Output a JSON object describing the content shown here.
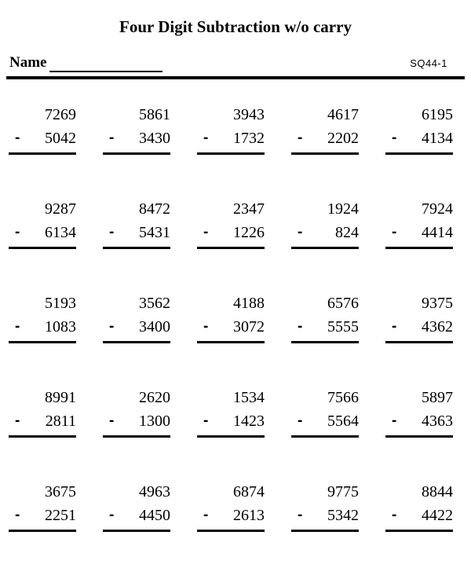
{
  "header": {
    "title": "Four Digit Subtraction w/o carry",
    "name_label": "Name",
    "code": "SQ44-1",
    "operator": "-"
  },
  "colors": {
    "ink": "#000000",
    "paper": "#ffffff"
  },
  "problems": [
    {
      "minuend": "7269",
      "subtrahend": "5042"
    },
    {
      "minuend": "5861",
      "subtrahend": "3430"
    },
    {
      "minuend": "3943",
      "subtrahend": "1732"
    },
    {
      "minuend": "4617",
      "subtrahend": "2202"
    },
    {
      "minuend": "6195",
      "subtrahend": "4134"
    },
    {
      "minuend": "9287",
      "subtrahend": "6134"
    },
    {
      "minuend": "8472",
      "subtrahend": "5431"
    },
    {
      "minuend": "2347",
      "subtrahend": "1226"
    },
    {
      "minuend": "1924",
      "subtrahend": "824"
    },
    {
      "minuend": "7924",
      "subtrahend": "4414"
    },
    {
      "minuend": "5193",
      "subtrahend": "1083"
    },
    {
      "minuend": "3562",
      "subtrahend": "3400"
    },
    {
      "minuend": "4188",
      "subtrahend": "3072"
    },
    {
      "minuend": "6576",
      "subtrahend": "5555"
    },
    {
      "minuend": "9375",
      "subtrahend": "4362"
    },
    {
      "minuend": "8991",
      "subtrahend": "2811"
    },
    {
      "minuend": "2620",
      "subtrahend": "1300"
    },
    {
      "minuend": "1534",
      "subtrahend": "1423"
    },
    {
      "minuend": "7566",
      "subtrahend": "5564"
    },
    {
      "minuend": "5897",
      "subtrahend": "4363"
    },
    {
      "minuend": "3675",
      "subtrahend": "2251"
    },
    {
      "minuend": "4963",
      "subtrahend": "4450"
    },
    {
      "minuend": "6874",
      "subtrahend": "2613"
    },
    {
      "minuend": "9775",
      "subtrahend": "5342"
    },
    {
      "minuend": "8844",
      "subtrahend": "4422"
    }
  ]
}
